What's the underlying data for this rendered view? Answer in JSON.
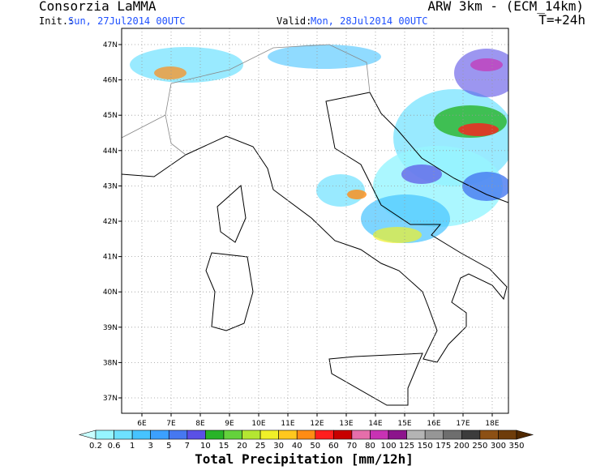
{
  "header": {
    "left_title": "Consorzia LaMMA",
    "right_title": "ARW 3km - (ECM_14km)",
    "init_label": "Init.:",
    "init_value": "Sun, 27Jul2014 00UTC",
    "valid_label": "Valid:",
    "valid_value": "Mon, 28Jul2014 00UTC",
    "lead_time": "T=+24h"
  },
  "map": {
    "lat_ticks": [
      "47N",
      "46N",
      "45N",
      "44N",
      "43N",
      "42N",
      "41N",
      "40N",
      "39N",
      "38N",
      "37N"
    ],
    "lon_ticks": [
      "6E",
      "7E",
      "8E",
      "9E",
      "10E",
      "11E",
      "12E",
      "13E",
      "14E",
      "15E",
      "16E",
      "17E",
      "18E"
    ]
  },
  "colorbar": {
    "title": "Total Precipitation [mm/12h]",
    "labels": [
      "0.2",
      "0.6",
      "1",
      "3",
      "5",
      "7",
      "10",
      "15",
      "20",
      "25",
      "30",
      "40",
      "50",
      "60",
      "70",
      "80",
      "100",
      "125",
      "150",
      "175",
      "200",
      "250",
      "300",
      "350"
    ],
    "colors": [
      "#c8ffff",
      "#96f5ff",
      "#6ee1ff",
      "#46c3ff",
      "#3ca0ff",
      "#4678f0",
      "#5a50e6",
      "#28b428",
      "#64d23c",
      "#b4e632",
      "#f0f028",
      "#ffc81e",
      "#ff8c14",
      "#ff1e1e",
      "#c80000",
      "#e66eaa",
      "#c832b4",
      "#8c148c",
      "#b4b4b4",
      "#969696",
      "#6e6e6e",
      "#3c3c3c",
      "#8c5014",
      "#6e3c0a",
      "#502800"
    ]
  }
}
